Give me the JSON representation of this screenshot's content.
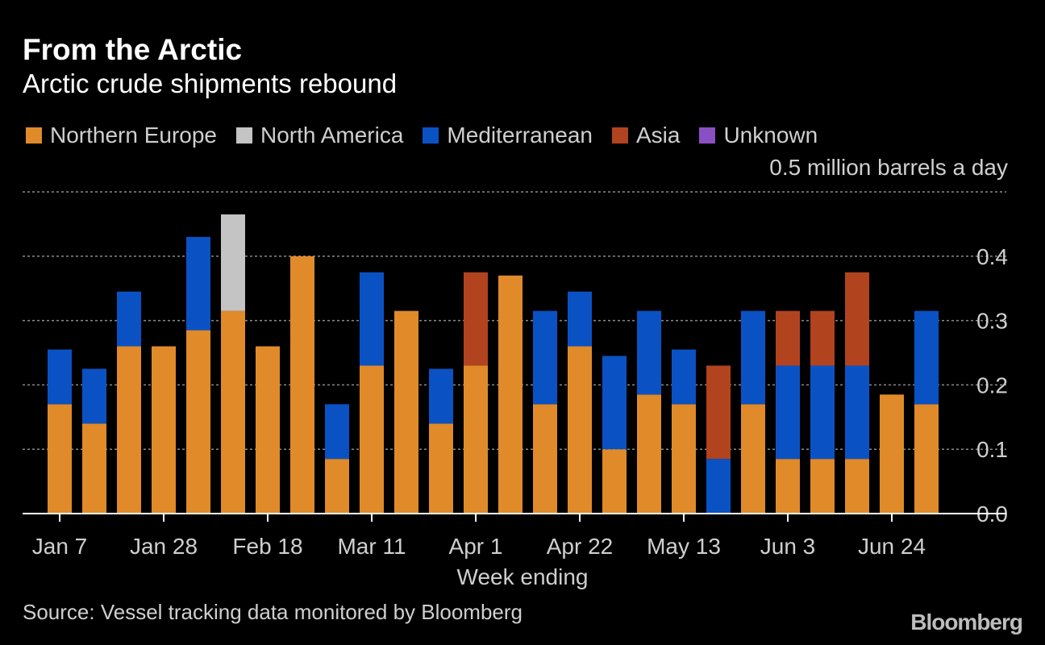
{
  "title": "From the Arctic",
  "subtitle": "Arctic crude shipments rebound",
  "source": "Source: Vessel tracking data monitored by Bloomberg",
  "brand": "Bloomberg",
  "unit_label": "0.5 million barrels a day",
  "legend": [
    {
      "name": "Northern Europe",
      "color": "#e08a2a"
    },
    {
      "name": "North America",
      "color": "#c4c4c4"
    },
    {
      "name": "Mediterranean",
      "color": "#0a52c4"
    },
    {
      "name": "Asia",
      "color": "#b2431f"
    },
    {
      "name": "Unknown",
      "color": "#8a4fc2"
    }
  ],
  "chart_data": {
    "type": "bar",
    "stacked": true,
    "xlabel": "Week ending",
    "ylabel": "",
    "ylim": [
      0,
      0.5
    ],
    "y_ticks": [
      "0.0",
      "0.1",
      "0.2",
      "0.3",
      "0.4"
    ],
    "y_tick_values": [
      0,
      0.1,
      0.2,
      0.3,
      0.4
    ],
    "grid": true,
    "x_tick_labels": [
      {
        "label": "Jan 7",
        "index": 0
      },
      {
        "label": "Jan 28",
        "index": 3
      },
      {
        "label": "Feb 18",
        "index": 6
      },
      {
        "label": "Mar 11",
        "index": 9
      },
      {
        "label": "Apr 1",
        "index": 12
      },
      {
        "label": "Apr 22",
        "index": 15
      },
      {
        "label": "May 13",
        "index": 18
      },
      {
        "label": "Jun 3",
        "index": 21
      },
      {
        "label": "Jun 24",
        "index": 24
      }
    ],
    "num_weeks": 26,
    "series": [
      {
        "name": "Northern Europe",
        "color": "#e08a2a",
        "values": [
          0.17,
          0.14,
          0.26,
          0.26,
          0.285,
          0.315,
          0.26,
          0.4,
          0.085,
          0.23,
          0.315,
          0.14,
          0.23,
          0.37,
          0.17,
          0.26,
          0.1,
          0.185,
          0.17,
          0.0,
          0.17,
          0.085,
          0.085,
          0.085,
          0.185,
          0.17
        ]
      },
      {
        "name": "North America",
        "color": "#c4c4c4",
        "values": [
          0,
          0,
          0,
          0,
          0,
          0.15,
          0,
          0,
          0,
          0,
          0,
          0,
          0,
          0,
          0,
          0,
          0,
          0,
          0,
          0,
          0,
          0,
          0,
          0,
          0,
          0
        ]
      },
      {
        "name": "Mediterranean",
        "color": "#0a52c4",
        "values": [
          0.085,
          0.085,
          0.085,
          0,
          0.145,
          0,
          0,
          0,
          0.085,
          0.145,
          0,
          0.085,
          0,
          0,
          0.145,
          0.085,
          0.145,
          0.13,
          0.085,
          0.085,
          0.145,
          0.145,
          0.145,
          0.145,
          0,
          0.145
        ]
      },
      {
        "name": "Asia",
        "color": "#b2431f",
        "values": [
          0,
          0,
          0,
          0,
          0,
          0,
          0,
          0,
          0,
          0,
          0,
          0,
          0.145,
          0,
          0,
          0,
          0,
          0,
          0,
          0.145,
          0,
          0.085,
          0.085,
          0.145,
          0,
          0
        ]
      },
      {
        "name": "Unknown",
        "color": "#8a4fc2",
        "values": [
          0,
          0,
          0,
          0,
          0,
          0,
          0,
          0,
          0,
          0,
          0,
          0,
          0,
          0,
          0,
          0,
          0,
          0,
          0,
          0,
          0,
          0,
          0,
          0,
          0,
          0
        ]
      }
    ]
  }
}
